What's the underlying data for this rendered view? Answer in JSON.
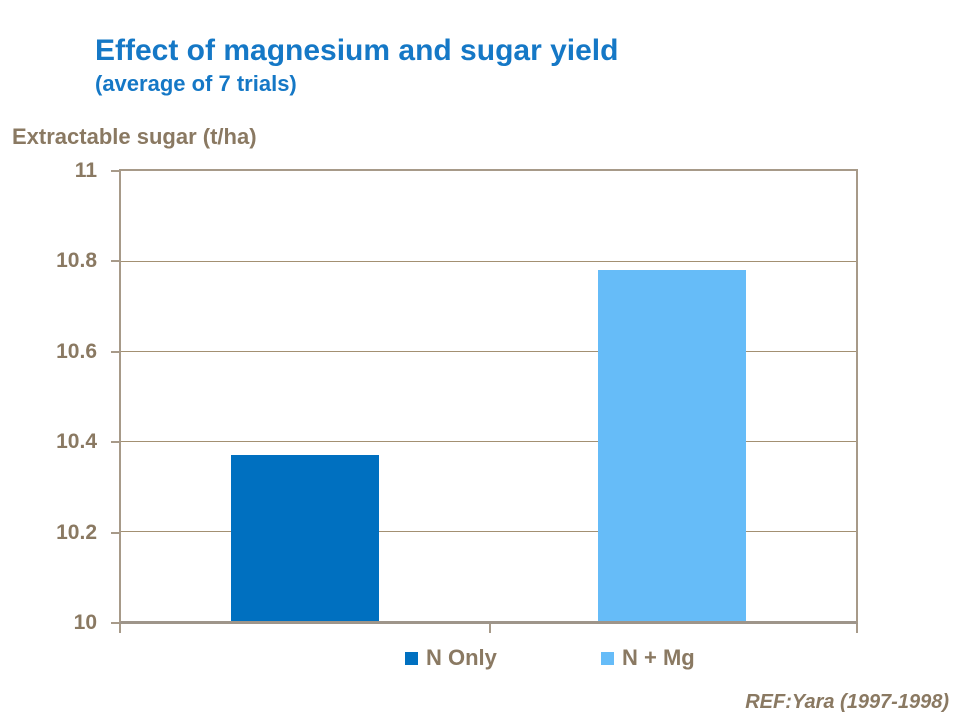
{
  "header": {
    "title": "Effect of magnesium and sugar yield",
    "subtitle": "(average of 7 trials)"
  },
  "y_axis_title": "Extractable sugar (t/ha)",
  "chart_data": {
    "type": "bar",
    "categories": [
      "N Only",
      "N + Mg"
    ],
    "values": [
      10.37,
      10.78
    ],
    "series_colors": [
      "#0070C0",
      "#66BCF8"
    ],
    "title": "Effect of magnesium and sugar yield",
    "subtitle": "(average of 7 trials)",
    "xlabel": "",
    "ylabel": "Extractable sugar (t/ha)",
    "ylim": [
      10,
      11
    ],
    "yticks": [
      10,
      10.2,
      10.4,
      10.6,
      10.8,
      11
    ],
    "grid": true,
    "legend_position": "bottom"
  },
  "legend": {
    "items": [
      {
        "label": "N Only",
        "color": "#0070C0"
      },
      {
        "label": "N + Mg",
        "color": "#66BCF8"
      }
    ]
  },
  "footer": {
    "reference": "REF:Yara (1997-1998)"
  },
  "colors": {
    "title_blue": "#1578C6",
    "text_brown": "#8A7962",
    "bar_dark_blue": "#0070C0",
    "bar_light_blue": "#66BCF8",
    "plot_border": "#A79A89",
    "axis_line": "#9E958A",
    "gridline": "#A39072"
  }
}
